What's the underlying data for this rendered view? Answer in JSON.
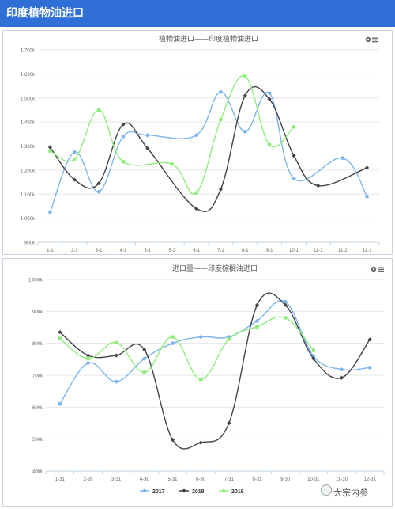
{
  "page_title": "印度植物油进口",
  "watermark": "大宗内参",
  "colors": {
    "2017": "#7cb5ec",
    "2018": "#434348",
    "2019": "#90ed7d"
  },
  "menu_icon": "gear-menu-icon",
  "chart_data": [
    {
      "type": "line",
      "title": "植物油进口——印度植物油进口",
      "ylim": [
        900000,
        1700000
      ],
      "y_ticks": [
        {
          "v": 900000,
          "label": "900k"
        },
        {
          "v": 1000000,
          "label": "1 000k"
        },
        {
          "v": 1100000,
          "label": "1 100k"
        },
        {
          "v": 1200000,
          "label": "1 200k"
        },
        {
          "v": 1300000,
          "label": "1 300k"
        },
        {
          "v": 1400000,
          "label": "1 400k"
        },
        {
          "v": 1500000,
          "label": "1 500k"
        },
        {
          "v": 1600000,
          "label": "1 600k"
        },
        {
          "v": 1700000,
          "label": "1 700k"
        }
      ],
      "categories": [
        "1-1",
        "2-1",
        "3-1",
        "4-1",
        "5-1",
        "5-2",
        "6-1",
        "7-1",
        "8-1",
        "9-1",
        "10-1",
        "11-1",
        "11-2",
        "12-1"
      ],
      "grid": true,
      "legend": "none",
      "series": [
        {
          "name": "2017",
          "values": [
            1025000,
            1275000,
            1110000,
            1340000,
            1345000,
            null,
            1345000,
            1525000,
            1360000,
            1520000,
            1165000,
            null,
            1250000,
            1090000
          ]
        },
        {
          "name": "2018",
          "values": [
            1295000,
            1160000,
            1145000,
            1390000,
            1290000,
            null,
            1040000,
            1120000,
            1510000,
            1495000,
            1260000,
            1135000,
            null,
            1210000
          ]
        },
        {
          "name": "2019",
          "values": [
            1280000,
            1245000,
            1450000,
            1235000,
            null,
            1225000,
            1105000,
            1410000,
            1590000,
            1305000,
            1380000,
            null,
            null,
            null
          ]
        }
      ]
    },
    {
      "type": "line",
      "title": "进口量——印度棕榈油进口",
      "ylim": [
        400000,
        1000000
      ],
      "y_ticks": [
        {
          "v": 400000,
          "label": "400k"
        },
        {
          "v": 500000,
          "label": "500k"
        },
        {
          "v": 600000,
          "label": "600k"
        },
        {
          "v": 700000,
          "label": "700k"
        },
        {
          "v": 800000,
          "label": "800k"
        },
        {
          "v": 900000,
          "label": "900k"
        },
        {
          "v": 1000000,
          "label": "1 000k"
        }
      ],
      "categories": [
        "1-31",
        "2-28",
        "3-31",
        "4-30",
        "5-31",
        "6-30",
        "7-31",
        "8-31",
        "9-30",
        "10-31",
        "11-30",
        "12-31"
      ],
      "grid": true,
      "legend": "bottom-center",
      "series": [
        {
          "name": "2017",
          "values": [
            610000,
            738000,
            680000,
            752000,
            800000,
            820000,
            820000,
            870000,
            930000,
            760000,
            718000,
            724000
          ]
        },
        {
          "name": "2018",
          "values": [
            835000,
            762000,
            762000,
            780000,
            498000,
            489000,
            550000,
            920000,
            920000,
            752000,
            692000,
            812000
          ]
        },
        {
          "name": "2019",
          "values": [
            815000,
            752000,
            802000,
            709000,
            820000,
            687000,
            813000,
            852000,
            880000,
            778000,
            null,
            null
          ]
        }
      ]
    }
  ]
}
